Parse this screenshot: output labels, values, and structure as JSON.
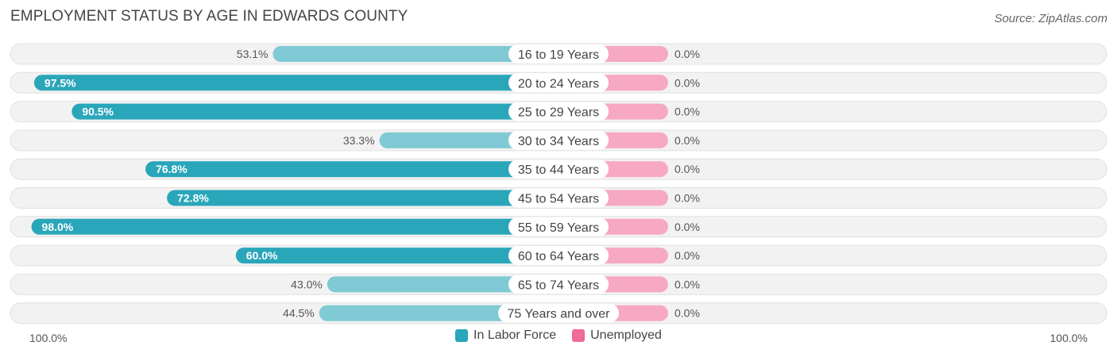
{
  "title": "EMPLOYMENT STATUS BY AGE IN EDWARDS COUNTY",
  "source": "Source: ZipAtlas.com",
  "colors": {
    "labor_dark": "#2aa6ba",
    "labor_light": "#7fcad4",
    "unemployed": "#f7a8c3",
    "unemployed_legend": "#f06b96",
    "track": "#f2f2f2",
    "track_border": "#e0e0e0"
  },
  "chart_data": {
    "type": "bar",
    "orientation": "horizontal-diverging",
    "categories": [
      "16 to 19 Years",
      "20 to 24 Years",
      "25 to 29 Years",
      "30 to 34 Years",
      "35 to 44 Years",
      "45 to 54 Years",
      "55 to 59 Years",
      "60 to 64 Years",
      "65 to 74 Years",
      "75 Years and over"
    ],
    "series": [
      {
        "name": "In Labor Force",
        "values": [
          53.1,
          97.5,
          90.5,
          33.3,
          76.8,
          72.8,
          98.0,
          60.0,
          43.0,
          44.5
        ],
        "labels": [
          "53.1%",
          "97.5%",
          "90.5%",
          "33.3%",
          "76.8%",
          "72.8%",
          "98.0%",
          "60.0%",
          "43.0%",
          "44.5%"
        ]
      },
      {
        "name": "Unemployed",
        "values": [
          0.0,
          0.0,
          0.0,
          0.0,
          0.0,
          0.0,
          0.0,
          0.0,
          0.0,
          0.0
        ],
        "labels": [
          "0.0%",
          "0.0%",
          "0.0%",
          "0.0%",
          "0.0%",
          "0.0%",
          "0.0%",
          "0.0%",
          "0.0%",
          "0.0%"
        ]
      }
    ],
    "axis": {
      "left_label": "100.0%",
      "right_label": "100.0%",
      "range": [
        0,
        100
      ]
    },
    "legend": [
      "In Labor Force",
      "Unemployed"
    ],
    "legend_position": "bottom-center"
  }
}
